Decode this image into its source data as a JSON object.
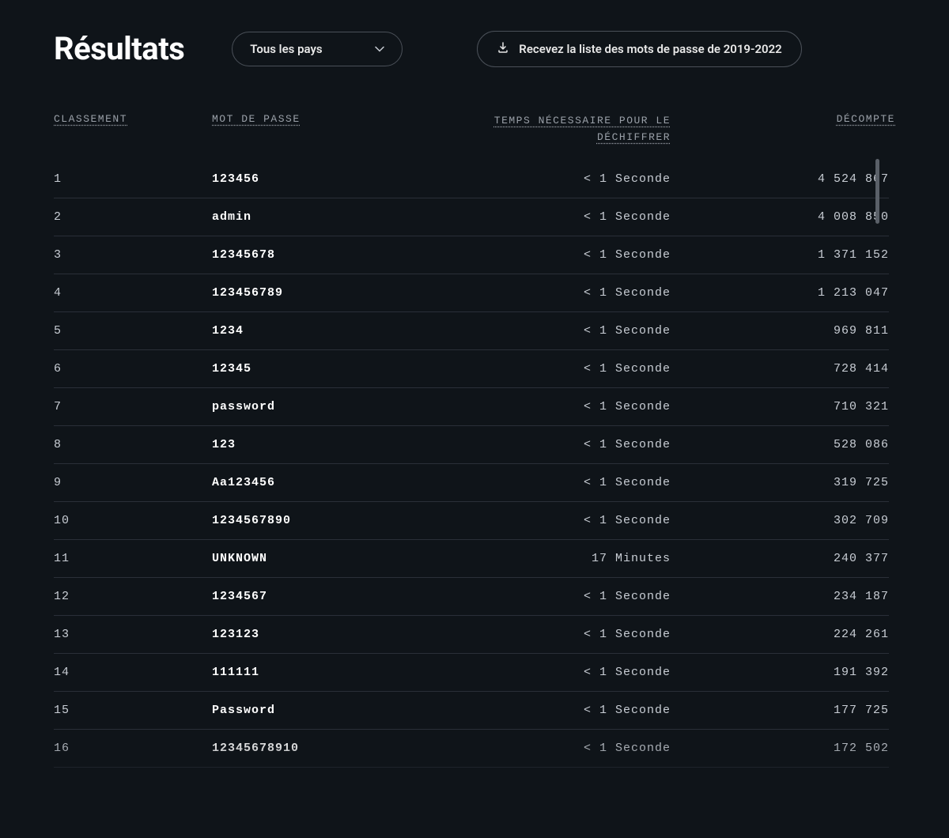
{
  "colors": {
    "background": "#0f1419",
    "text_primary": "#ffffff",
    "text_secondary": "#c8cdd4",
    "text_muted": "#9aa0a8",
    "border": "#4a5058",
    "row_border": "#2a2f38"
  },
  "header": {
    "title": "Résultats",
    "dropdown_label": "Tous les pays",
    "download_label": "Recevez la liste des mots de passe de 2019-2022"
  },
  "table": {
    "columns": {
      "rank": "CLASSEMENT",
      "password": "MOT DE PASSE",
      "time": "TEMPS NÉCESSAIRE POUR LE DÉCHIFFRER",
      "count": "DÉCOMPTE"
    },
    "rows": [
      {
        "rank": "1",
        "password": "123456",
        "time": "< 1 Seconde",
        "count": "4 524 867"
      },
      {
        "rank": "2",
        "password": "admin",
        "time": "< 1 Seconde",
        "count": "4 008 850"
      },
      {
        "rank": "3",
        "password": "12345678",
        "time": "< 1 Seconde",
        "count": "1 371 152"
      },
      {
        "rank": "4",
        "password": "123456789",
        "time": "< 1 Seconde",
        "count": "1 213 047"
      },
      {
        "rank": "5",
        "password": "1234",
        "time": "< 1 Seconde",
        "count": "969 811"
      },
      {
        "rank": "6",
        "password": "12345",
        "time": "< 1 Seconde",
        "count": "728 414"
      },
      {
        "rank": "7",
        "password": "password",
        "time": "< 1 Seconde",
        "count": "710 321"
      },
      {
        "rank": "8",
        "password": "123",
        "time": "< 1 Seconde",
        "count": "528 086"
      },
      {
        "rank": "9",
        "password": "Aa123456",
        "time": "< 1 Seconde",
        "count": "319 725"
      },
      {
        "rank": "10",
        "password": "1234567890",
        "time": "< 1 Seconde",
        "count": "302 709"
      },
      {
        "rank": "11",
        "password": "UNKNOWN",
        "time": "17 Minutes",
        "count": "240 377"
      },
      {
        "rank": "12",
        "password": "1234567",
        "time": "< 1 Seconde",
        "count": "234 187"
      },
      {
        "rank": "13",
        "password": "123123",
        "time": "< 1 Seconde",
        "count": "224 261"
      },
      {
        "rank": "14",
        "password": "111111",
        "time": "< 1 Seconde",
        "count": "191 392"
      },
      {
        "rank": "15",
        "password": "Password",
        "time": "< 1 Seconde",
        "count": "177 725"
      },
      {
        "rank": "16",
        "password": "12345678910",
        "time": "< 1 Seconde",
        "count": "172 502"
      }
    ]
  },
  "typography": {
    "title_fontsize": 40,
    "body_font": "Courier New, monospace",
    "header_font": "-apple-system, sans-serif"
  }
}
